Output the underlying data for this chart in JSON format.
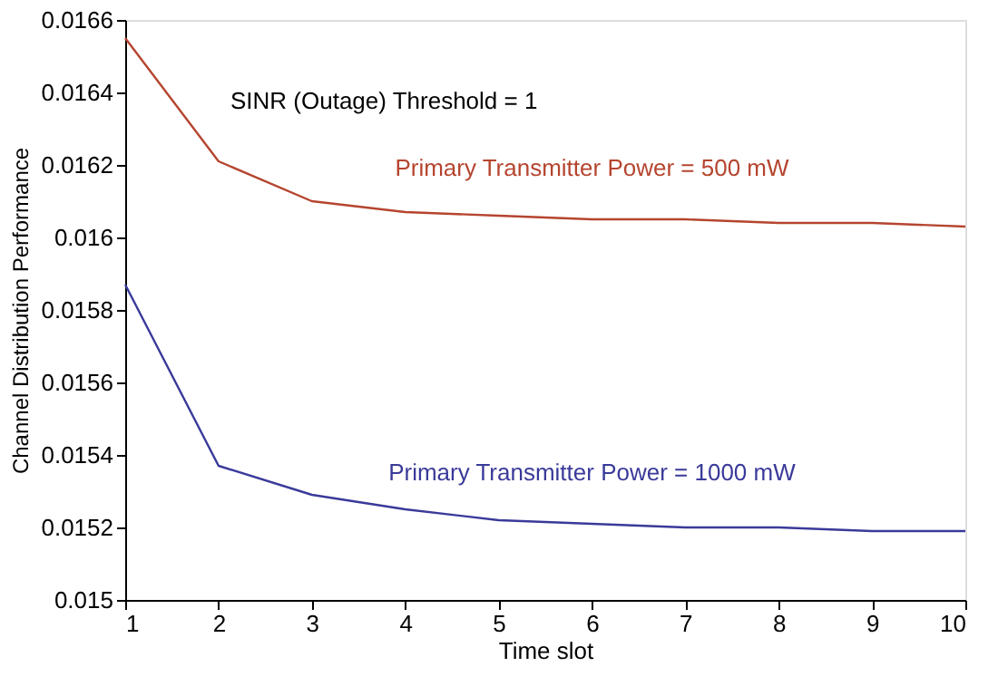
{
  "chart_data": {
    "type": "line",
    "xlabel": "Time slot",
    "ylabel": "Channel Distribution Performance",
    "x": [
      1,
      2,
      3,
      4,
      5,
      6,
      7,
      8,
      9,
      10
    ],
    "series": [
      {
        "name": "Primary Transmitter Power = 500 mW",
        "color": "#b5452f",
        "values": [
          0.01655,
          0.01621,
          0.0161,
          0.01607,
          0.01606,
          0.01605,
          0.01605,
          0.01604,
          0.01604,
          0.01603
        ]
      },
      {
        "name": "Primary Transmitter Power = 1000 mW",
        "color": "#3a3a9a",
        "values": [
          0.01587,
          0.01537,
          0.01529,
          0.01525,
          0.01522,
          0.01521,
          0.0152,
          0.0152,
          0.01519,
          0.01519
        ]
      }
    ],
    "annotations": [
      "SINR (Outage) Threshold = 1"
    ],
    "xlim": [
      1,
      10
    ],
    "xticks": [
      1,
      2,
      3,
      4,
      5,
      6,
      7,
      8,
      9,
      10
    ],
    "ylim": [
      0.015,
      0.0166
    ],
    "yticks": [
      0.015,
      0.0152,
      0.0154,
      0.0156,
      0.0158,
      0.016,
      0.0162,
      0.0164,
      0.0166
    ],
    "grid": false,
    "legend": false,
    "marker": "none",
    "line_style": "solid"
  }
}
